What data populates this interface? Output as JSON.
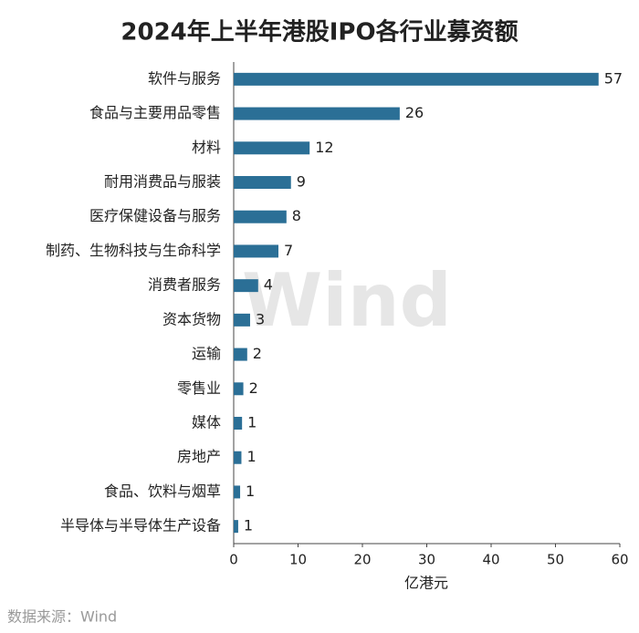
{
  "chart_data": {
    "type": "barh",
    "title": "2024年上半年港股IPO各行业募资额",
    "categories": [
      "软件与服务",
      "食品与主要用品零售",
      "材料",
      "耐用消费品与服装",
      "医疗保健设备与服务",
      "制药、生物科技与生命科学",
      "消费者服务",
      "资本货物",
      "运输",
      "零售业",
      "媒体",
      "房地产",
      "食品、饮料与烟草",
      "半导体与半导体生产设备"
    ],
    "values": [
      56.7,
      25.8,
      11.8,
      8.9,
      8.2,
      6.95,
      3.8,
      2.55,
      2.1,
      1.5,
      1.3,
      1.2,
      1.0,
      0.7
    ],
    "value_labels": [
      "57",
      "26",
      "12",
      "9",
      "8",
      "7",
      "4",
      "3",
      "2",
      "2",
      "1",
      "1",
      "1",
      "1"
    ],
    "color": "#2b6f96",
    "xlim": [
      0,
      60
    ],
    "xticks": [
      0,
      10,
      20,
      30,
      40,
      50,
      60
    ],
    "x_label": "亿港元",
    "watermark": "Wind",
    "source": "数据来源：Wind"
  }
}
